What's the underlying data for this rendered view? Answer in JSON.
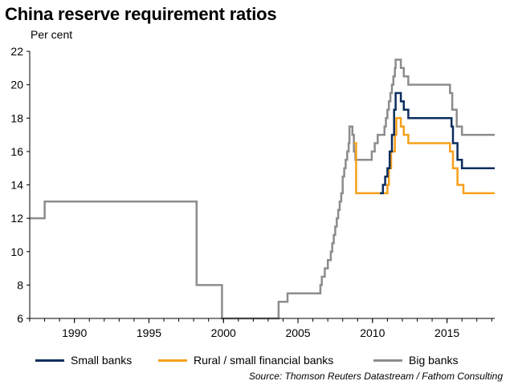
{
  "header": {
    "title": "China reserve requirement ratios",
    "subtitle": "Per cent"
  },
  "source": "Source: Thomson Reuters Datastream / Fathom Consulting",
  "colors": {
    "small": "#0c2d5e",
    "rural": "#f5a01a",
    "big": "#8c8c8c",
    "axis": "#000000",
    "grid": "#d9d9d9"
  },
  "chart_data": {
    "type": "line",
    "title": "China reserve requirement ratios",
    "ylabel": "Per cent",
    "xlabel": "",
    "xlim": [
      1987,
      2018.2
    ],
    "ylim": [
      6,
      22
    ],
    "x_ticks": [
      1990,
      1995,
      2000,
      2005,
      2010,
      2015
    ],
    "y_ticks": [
      6,
      8,
      10,
      12,
      14,
      16,
      18,
      20,
      22
    ],
    "grid": false,
    "legend": "bottom",
    "series": [
      {
        "key": "small",
        "name": "Small banks",
        "step": true,
        "points": [
          [
            2010.5,
            13.5
          ],
          [
            2010.7,
            14.0
          ],
          [
            2010.85,
            14.5
          ],
          [
            2011.0,
            15.0
          ],
          [
            2011.15,
            16.0
          ],
          [
            2011.3,
            17.0
          ],
          [
            2011.45,
            18.5
          ],
          [
            2011.55,
            19.5
          ],
          [
            2011.9,
            19.0
          ],
          [
            2012.1,
            18.5
          ],
          [
            2012.4,
            18.0
          ],
          [
            2015.3,
            17.5
          ],
          [
            2015.4,
            16.5
          ],
          [
            2015.7,
            15.5
          ],
          [
            2016.0,
            15.0
          ],
          [
            2018.2,
            15.0
          ]
        ]
      },
      {
        "key": "rural",
        "name": "Rural / small financial banks",
        "step": true,
        "points": [
          [
            2008.75,
            16.5
          ],
          [
            2008.9,
            13.5
          ],
          [
            2011.0,
            14.0
          ],
          [
            2011.1,
            15.0
          ],
          [
            2011.25,
            16.0
          ],
          [
            2011.5,
            17.0
          ],
          [
            2011.6,
            18.0
          ],
          [
            2011.9,
            17.5
          ],
          [
            2012.1,
            17.0
          ],
          [
            2012.4,
            16.5
          ],
          [
            2015.2,
            16.0
          ],
          [
            2015.4,
            15.0
          ],
          [
            2015.7,
            14.0
          ],
          [
            2016.1,
            13.5
          ],
          [
            2018.2,
            13.5
          ]
        ]
      },
      {
        "key": "big",
        "name": "Big banks",
        "step": true,
        "points": [
          [
            1987.0,
            12.0
          ],
          [
            1988.0,
            13.0
          ],
          [
            1998.2,
            8.0
          ],
          [
            1999.9,
            6.0
          ],
          [
            2003.7,
            7.0
          ],
          [
            2004.3,
            7.5
          ],
          [
            2006.5,
            8.0
          ],
          [
            2006.6,
            8.5
          ],
          [
            2006.8,
            9.0
          ],
          [
            2007.0,
            9.5
          ],
          [
            2007.2,
            10.0
          ],
          [
            2007.3,
            10.5
          ],
          [
            2007.4,
            11.0
          ],
          [
            2007.5,
            11.5
          ],
          [
            2007.6,
            12.0
          ],
          [
            2007.7,
            12.5
          ],
          [
            2007.8,
            13.0
          ],
          [
            2007.9,
            13.5
          ],
          [
            2008.0,
            14.5
          ],
          [
            2008.1,
            15.0
          ],
          [
            2008.2,
            15.5
          ],
          [
            2008.3,
            16.0
          ],
          [
            2008.4,
            16.5
          ],
          [
            2008.45,
            17.5
          ],
          [
            2008.65,
            17.0
          ],
          [
            2008.75,
            16.0
          ],
          [
            2008.85,
            15.5
          ],
          [
            2009.95,
            16.0
          ],
          [
            2010.15,
            16.5
          ],
          [
            2010.35,
            17.0
          ],
          [
            2010.8,
            17.5
          ],
          [
            2010.9,
            18.0
          ],
          [
            2011.0,
            18.5
          ],
          [
            2011.1,
            19.0
          ],
          [
            2011.2,
            19.5
          ],
          [
            2011.3,
            20.0
          ],
          [
            2011.4,
            20.5
          ],
          [
            2011.5,
            21.0
          ],
          [
            2011.55,
            21.5
          ],
          [
            2011.9,
            21.0
          ],
          [
            2012.1,
            20.5
          ],
          [
            2012.4,
            20.0
          ],
          [
            2015.2,
            19.5
          ],
          [
            2015.35,
            18.5
          ],
          [
            2015.65,
            17.5
          ],
          [
            2016.0,
            17.0
          ],
          [
            2018.2,
            17.0
          ]
        ]
      }
    ]
  }
}
